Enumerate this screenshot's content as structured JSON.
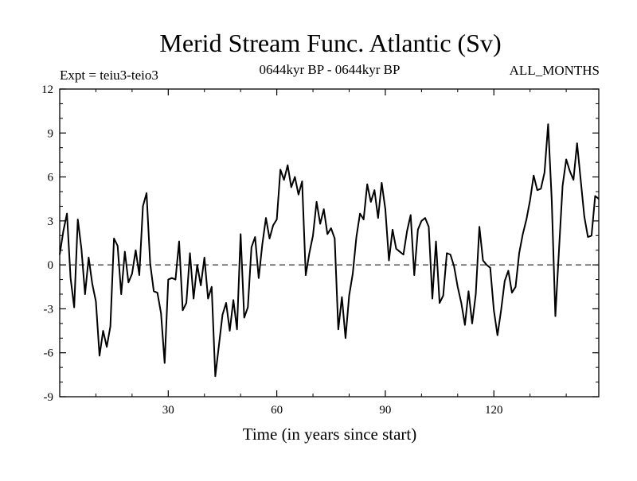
{
  "chart_data": {
    "type": "line",
    "title": "Merid Stream Func. Atlantic (Sv)",
    "subtitle_left": "Expt = teiu3-teio3",
    "subtitle_center": "0644kyr BP - 0644kyr BP",
    "subtitle_right": "ALL_MONTHS",
    "xlabel": "Time (in years since start)",
    "ylabel": "",
    "xlim": [
      0,
      149
    ],
    "ylim": [
      -9,
      12
    ],
    "xticks": [
      30,
      60,
      90,
      120
    ],
    "yticks": [
      -9,
      -6,
      -3,
      0,
      3,
      6,
      9,
      12
    ],
    "reference_line": {
      "y": 0,
      "style": "dashed"
    },
    "colors": {
      "line": "#000000",
      "axis": "#000000",
      "reference": "#000000"
    },
    "series": [
      {
        "name": "Merid Stream Func. Atlantic",
        "x": [
          0,
          1,
          2,
          3,
          4,
          5,
          6,
          7,
          8,
          9,
          10,
          11,
          12,
          13,
          14,
          15,
          16,
          17,
          18,
          19,
          20,
          21,
          22,
          23,
          24,
          25,
          26,
          27,
          28,
          29,
          30,
          31,
          32,
          33,
          34,
          35,
          36,
          37,
          38,
          39,
          40,
          41,
          42,
          43,
          44,
          45,
          46,
          47,
          48,
          49,
          50,
          51,
          52,
          53,
          54,
          55,
          56,
          57,
          58,
          59,
          60,
          61,
          62,
          63,
          64,
          65,
          66,
          67,
          68,
          69,
          70,
          71,
          72,
          73,
          74,
          75,
          76,
          77,
          78,
          79,
          80,
          81,
          82,
          83,
          84,
          85,
          86,
          87,
          88,
          89,
          90,
          91,
          92,
          93,
          94,
          95,
          96,
          97,
          98,
          99,
          100,
          101,
          102,
          103,
          104,
          105,
          106,
          107,
          108,
          109,
          110,
          111,
          112,
          113,
          114,
          115,
          116,
          117,
          118,
          119,
          120,
          121,
          122,
          123,
          124,
          125,
          126,
          127,
          128,
          129,
          130,
          131,
          132,
          133,
          134,
          135,
          136,
          137,
          138,
          139,
          140,
          141,
          142,
          143,
          144,
          145,
          146,
          147,
          148,
          149
        ],
        "values": [
          0.7,
          2.3,
          3.5,
          -0.9,
          -2.9,
          3.1,
          1.1,
          -2.0,
          0.5,
          -1.3,
          -2.5,
          -6.2,
          -4.5,
          -5.6,
          -4.2,
          1.8,
          1.3,
          -2.0,
          0.9,
          -1.2,
          -0.6,
          1.0,
          -0.7,
          4.0,
          4.9,
          0.1,
          -1.8,
          -1.9,
          -3.3,
          -6.7,
          -1.0,
          -0.9,
          -1.0,
          1.6,
          -3.1,
          -2.6,
          0.8,
          -2.3,
          0.0,
          -1.4,
          0.5,
          -2.3,
          -1.5,
          -7.6,
          -5.5,
          -3.4,
          -2.6,
          -4.5,
          -2.4,
          -4.4,
          2.1,
          -3.6,
          -2.9,
          1.2,
          1.9,
          -0.9,
          1.4,
          3.2,
          1.8,
          2.7,
          3.1,
          6.5,
          5.8,
          6.8,
          5.3,
          6.0,
          4.8,
          5.7,
          -0.7,
          0.8,
          2.0,
          4.3,
          2.8,
          3.8,
          2.1,
          2.5,
          1.8,
          -4.4,
          -2.2,
          -5.0,
          -2.1,
          -0.6,
          1.9,
          3.5,
          3.1,
          5.5,
          4.3,
          5.1,
          3.2,
          5.6,
          3.8,
          0.3,
          2.4,
          1.1,
          0.9,
          0.7,
          2.3,
          3.4,
          -0.7,
          2.4,
          3.0,
          3.2,
          2.6,
          -2.3,
          1.6,
          -2.6,
          -2.1,
          0.8,
          0.7,
          -0.1,
          -1.5,
          -2.6,
          -4.1,
          -1.8,
          -4.0,
          -2.0,
          2.6,
          0.3,
          0.0,
          -0.2,
          -3.1,
          -4.8,
          -3.1,
          -1.1,
          -0.4,
          -1.9,
          -1.5,
          0.8,
          2.1,
          3.1,
          4.4,
          6.1,
          5.1,
          5.2,
          6.3,
          9.6,
          4.4,
          -3.5,
          1.0,
          5.4,
          7.2,
          6.4,
          5.8,
          8.3,
          5.8,
          3.3,
          1.9,
          2.0,
          4.7,
          4.5
        ]
      }
    ]
  }
}
